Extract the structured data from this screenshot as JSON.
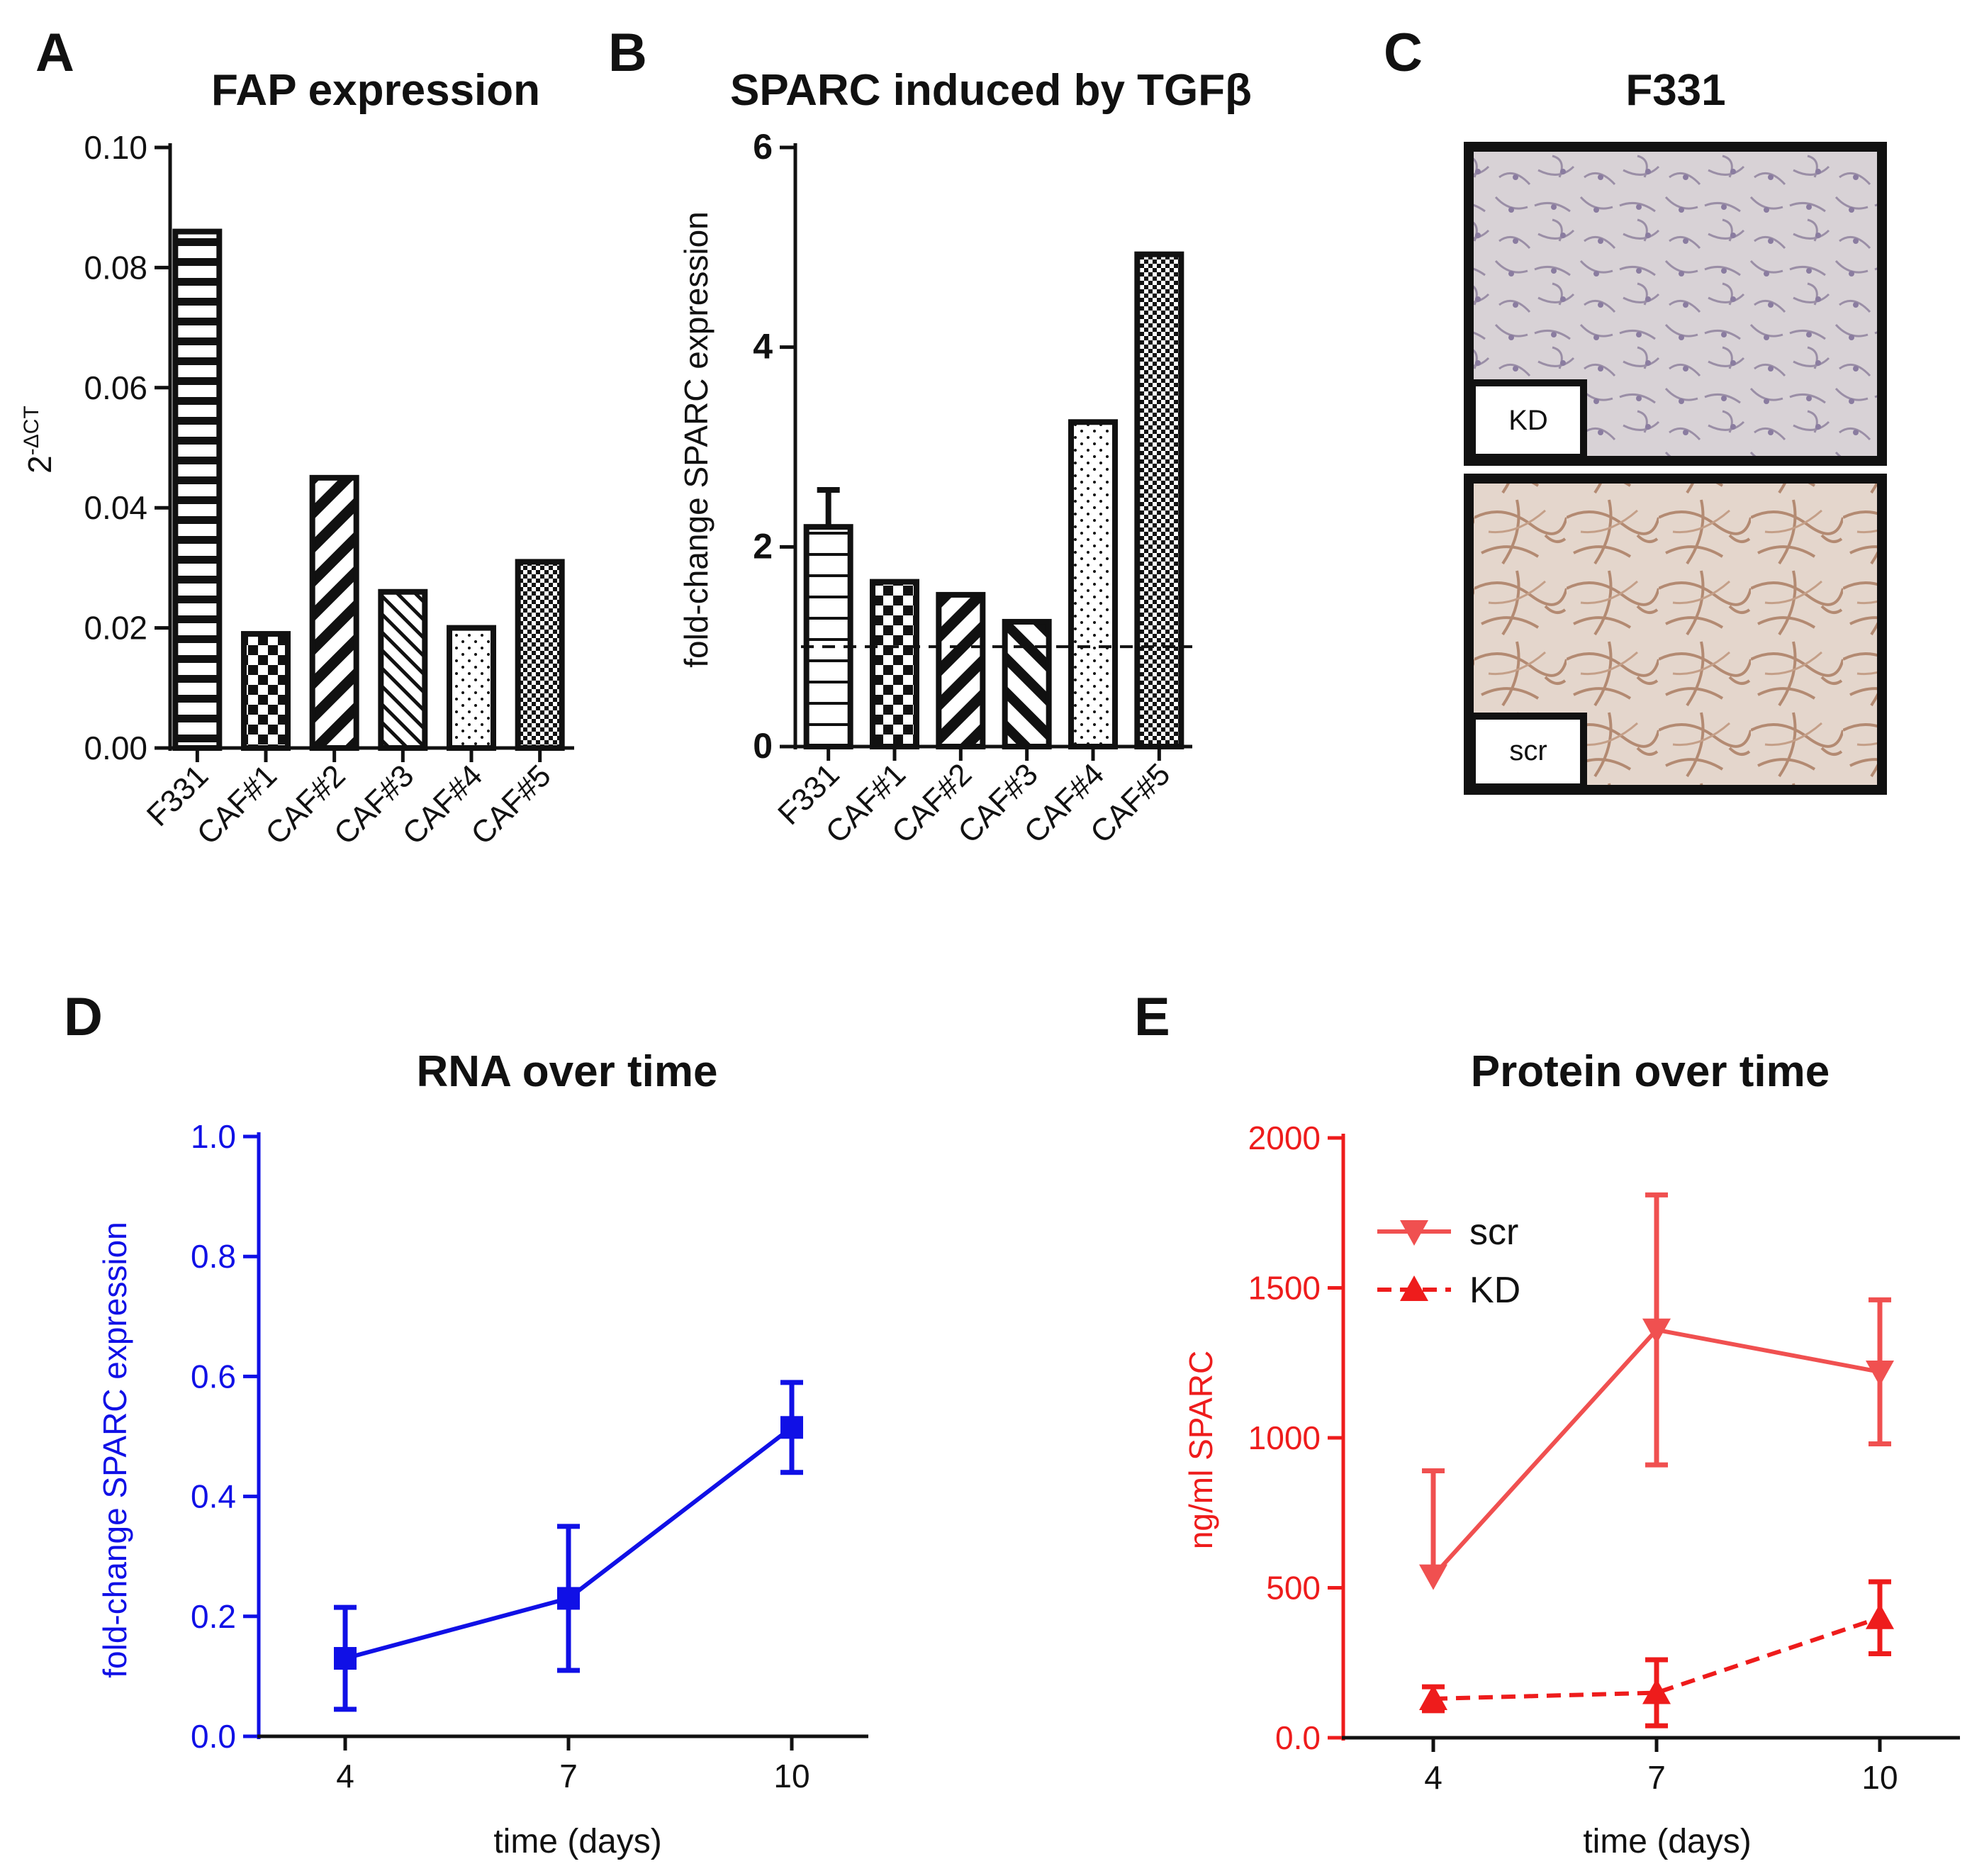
{
  "colors": {
    "black": "#111111",
    "blue": "#1010e6",
    "red": "#ee1c1c",
    "red_light": "#f05050"
  },
  "panels": {
    "A": {
      "letter": "A"
    },
    "B": {
      "letter": "B"
    },
    "C": {
      "letter": "C",
      "title": "F331",
      "image_top_label": "KD",
      "image_bottom_label": "scr"
    },
    "D": {
      "letter": "D"
    },
    "E": {
      "letter": "E"
    }
  },
  "chart_data": [
    {
      "id": "A",
      "type": "bar",
      "title": "FAP expression",
      "ylabel": "2",
      "ylabel_sup": "-ΔCT",
      "xlabel": "",
      "categories": [
        "F331",
        "CAF#1",
        "CAF#2",
        "CAF#3",
        "CAF#4",
        "CAF#5"
      ],
      "values": [
        0.086,
        0.019,
        0.045,
        0.026,
        0.02,
        0.031
      ],
      "patterns": [
        "hstripes",
        "checker",
        "diag-thick",
        "diag-thin",
        "dots",
        "fine-checker"
      ],
      "ylim": [
        0,
        0.1
      ],
      "yticks": [
        "0.00",
        "0.02",
        "0.04",
        "0.06",
        "0.08",
        "0.10"
      ]
    },
    {
      "id": "B",
      "type": "bar",
      "title": "SPARC induced by TGFβ",
      "ylabel": "fold-change SPARC expression",
      "xlabel": "",
      "categories": [
        "F331",
        "CAF#1",
        "CAF#2",
        "CAF#3",
        "CAF#4",
        "CAF#5"
      ],
      "values": [
        2.2,
        1.65,
        1.52,
        1.25,
        3.25,
        4.93
      ],
      "error": [
        0.37,
        0,
        0,
        0,
        0,
        0
      ],
      "patterns": [
        "hstripes-sparse",
        "checker",
        "diag-thick",
        "diag-thick2",
        "dots",
        "fine-checker"
      ],
      "reference_line": 1,
      "ylim": [
        0,
        6
      ],
      "yticks": [
        "0",
        "2",
        "4",
        "6"
      ]
    },
    {
      "id": "D",
      "type": "line",
      "title": "RNA over time",
      "xlabel": "time (days)",
      "ylabel": "fold-change SPARC expression",
      "x": [
        4,
        7,
        10
      ],
      "xticks": [
        "4",
        "7",
        "10"
      ],
      "series": [
        {
          "name": "",
          "values": [
            0.13,
            0.23,
            0.515
          ],
          "err_low": [
            0.085,
            0.12,
            0.075
          ],
          "err_high": [
            0.085,
            0.12,
            0.075
          ]
        }
      ],
      "ylim": [
        0,
        1
      ],
      "yticks": [
        "0.0",
        "0.2",
        "0.4",
        "0.6",
        "0.8",
        "1.0"
      ]
    },
    {
      "id": "E",
      "type": "line",
      "title": "Protein over time",
      "xlabel": "time (days)",
      "ylabel": "ng/ml SPARC",
      "x": [
        4,
        7,
        10
      ],
      "xticks": [
        "4",
        "7",
        "10"
      ],
      "series": [
        {
          "name": "scr",
          "marker": "triangle-down",
          "style": "solid",
          "values": [
            540,
            1360,
            1220
          ],
          "err_low": [
            0,
            450,
            240
          ],
          "err_high": [
            350,
            450,
            240
          ]
        },
        {
          "name": "KD",
          "marker": "triangle-up",
          "style": "dashed",
          "values": [
            130,
            150,
            400
          ],
          "err_low": [
            40,
            110,
            120
          ],
          "err_high": [
            40,
            110,
            120
          ]
        }
      ],
      "legend_position": "top-left",
      "ylim": [
        0,
        2000
      ],
      "yticks": [
        "0.0",
        "500",
        "1000",
        "1500",
        "2000"
      ]
    }
  ]
}
